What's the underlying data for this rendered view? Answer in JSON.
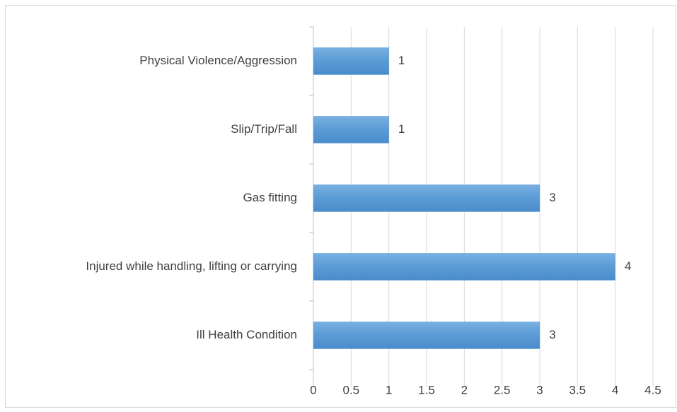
{
  "chart_data": {
    "type": "hbar",
    "categories": [
      "Physical Violence/Aggression",
      "Slip/Trip/Fall",
      "Gas fitting",
      "Injured while handling, lifting or carrying",
      "Ill Health Condition"
    ],
    "values": [
      1,
      1,
      3,
      4,
      3
    ],
    "color": "#5b9bd5",
    "xlim": [
      0,
      4.5
    ],
    "xticks": [
      0,
      0.5,
      1,
      1.5,
      2,
      2.5,
      3,
      3.5,
      4,
      4.5
    ],
    "grid": true
  }
}
